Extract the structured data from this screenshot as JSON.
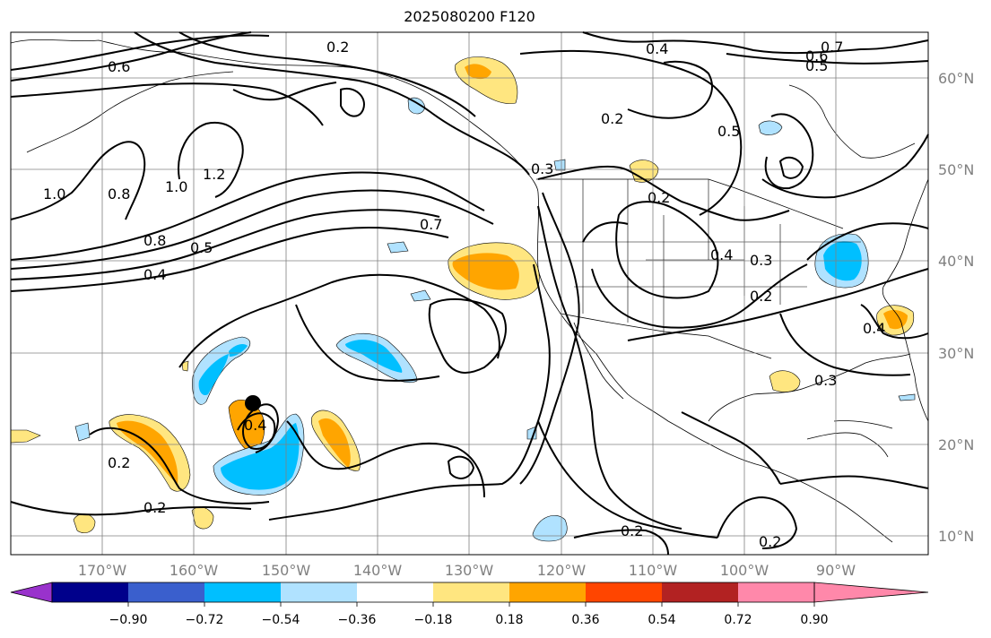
{
  "title": "2025080200 F120",
  "map": {
    "lon_labels": [
      "170°W",
      "160°W",
      "150°W",
      "140°W",
      "130°W",
      "120°W",
      "110°W",
      "100°W",
      "90°W"
    ],
    "lat_labels": [
      "60°N",
      "50°N",
      "40°N",
      "30°N",
      "20°N",
      "10°N"
    ],
    "contour_labels": [
      "0.2",
      "0.6",
      "0.4",
      "0.7",
      "0.5",
      "0.6",
      "0.2",
      "0.8",
      "1.0",
      "1.2",
      "1.0",
      "0.8",
      "0.5",
      "0.4",
      "0.7",
      "0.3",
      "0.5",
      "0.2",
      "0.4",
      "0.3",
      "0.2",
      "0.4",
      "0.2",
      "0.2",
      "0.2",
      "0.4",
      "0.3",
      "0.2"
    ],
    "marker": "storm-center"
  },
  "colorbar": {
    "ticks": [
      "−0.90",
      "−0.72",
      "−0.54",
      "−0.36",
      "−0.18",
      "0.18",
      "0.36",
      "0.54",
      "0.72",
      "0.90"
    ],
    "colors": [
      "#9932cc",
      "#00008b",
      "#3a5fcd",
      "#00bfff",
      "#b0e2ff",
      "#ffffff",
      "#ffe680",
      "#ffa500",
      "#ff4500",
      "#b22222",
      "#ff88aa"
    ]
  }
}
